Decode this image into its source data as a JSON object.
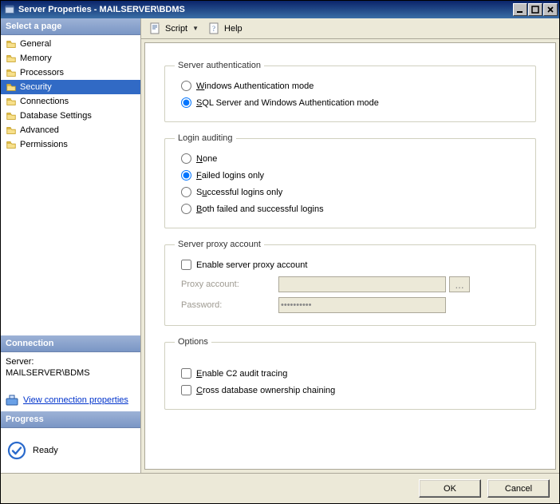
{
  "window": {
    "title": "Server Properties - MAILSERVER\\BDMS"
  },
  "toolbar": {
    "script_label": "Script",
    "help_label": "Help"
  },
  "sidebar": {
    "select_page_header": "Select a page",
    "items": [
      {
        "label": "General"
      },
      {
        "label": "Memory"
      },
      {
        "label": "Processors"
      },
      {
        "label": "Security"
      },
      {
        "label": "Connections"
      },
      {
        "label": "Database Settings"
      },
      {
        "label": "Advanced"
      },
      {
        "label": "Permissions"
      }
    ],
    "selected_index": 3
  },
  "connection": {
    "header": "Connection",
    "server_label": "Server:",
    "server_value": "MAILSERVER\\BDMS",
    "view_link": "View connection properties"
  },
  "progress": {
    "header": "Progress",
    "status": "Ready"
  },
  "form": {
    "server_auth": {
      "legend": "Server authentication",
      "options": [
        {
          "label": "Windows Authentication mode",
          "checked": false,
          "u": "W"
        },
        {
          "label": "SQL Server and Windows Authentication mode",
          "checked": true,
          "u": "S"
        }
      ]
    },
    "login_auditing": {
      "legend": "Login auditing",
      "options": [
        {
          "label": "None",
          "checked": false,
          "u": "N"
        },
        {
          "label": "Failed logins only",
          "checked": true,
          "u": "F"
        },
        {
          "label": "Successful logins only",
          "checked": false,
          "u": "u",
          "upos": 1
        },
        {
          "label": "Both failed and successful logins",
          "checked": false,
          "u": "B"
        }
      ]
    },
    "proxy": {
      "legend": "Server proxy account",
      "enable_label": "Enable server proxy account",
      "enable_checked": false,
      "account_label": "Proxy account:",
      "account_value": "",
      "password_label": "Password:",
      "password_value": "**********",
      "browse_label": "..."
    },
    "options": {
      "legend": "Options",
      "c2_label": "Enable C2 audit tracing",
      "c2_checked": false,
      "cross_label": "Cross database ownership chaining",
      "cross_checked": false
    }
  },
  "buttons": {
    "ok": "OK",
    "cancel": "Cancel"
  },
  "colors": {
    "titlebar_start": "#0a246a",
    "titlebar_end": "#3a6ea5",
    "sidebar_header_start": "#9db2d6",
    "sidebar_header_end": "#7a96c5",
    "selection": "#316ac5",
    "face": "#ece9d8",
    "border": "#aca899"
  }
}
